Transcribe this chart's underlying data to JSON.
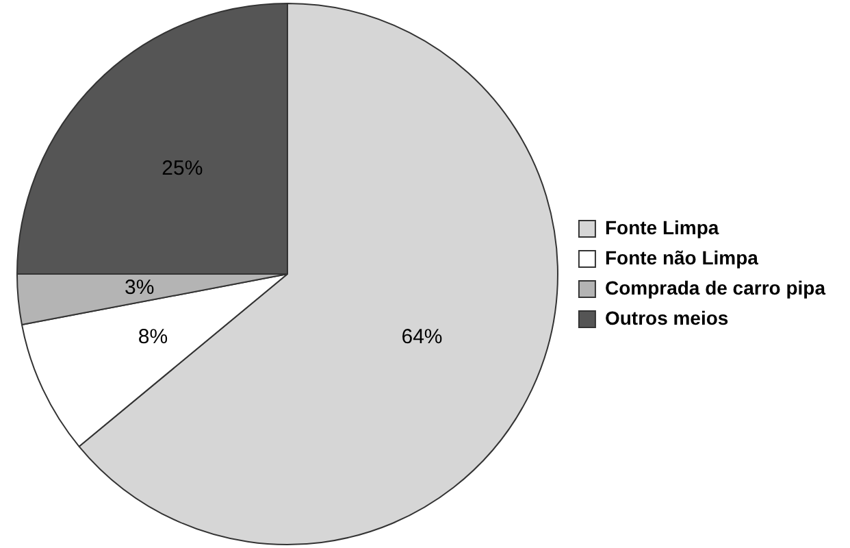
{
  "chart_data": {
    "type": "pie",
    "categories": [
      "Fonte Limpa",
      "Fonte não Limpa",
      "Comprada de carro pipa",
      "Outros meios"
    ],
    "values": [
      64,
      8,
      3,
      25
    ],
    "colors": [
      "#d6d6d6",
      "#ffffff",
      "#b4b4b4",
      "#555555"
    ],
    "value_labels": [
      "64%",
      "8%",
      "3%",
      "25%"
    ],
    "legend": "right"
  }
}
